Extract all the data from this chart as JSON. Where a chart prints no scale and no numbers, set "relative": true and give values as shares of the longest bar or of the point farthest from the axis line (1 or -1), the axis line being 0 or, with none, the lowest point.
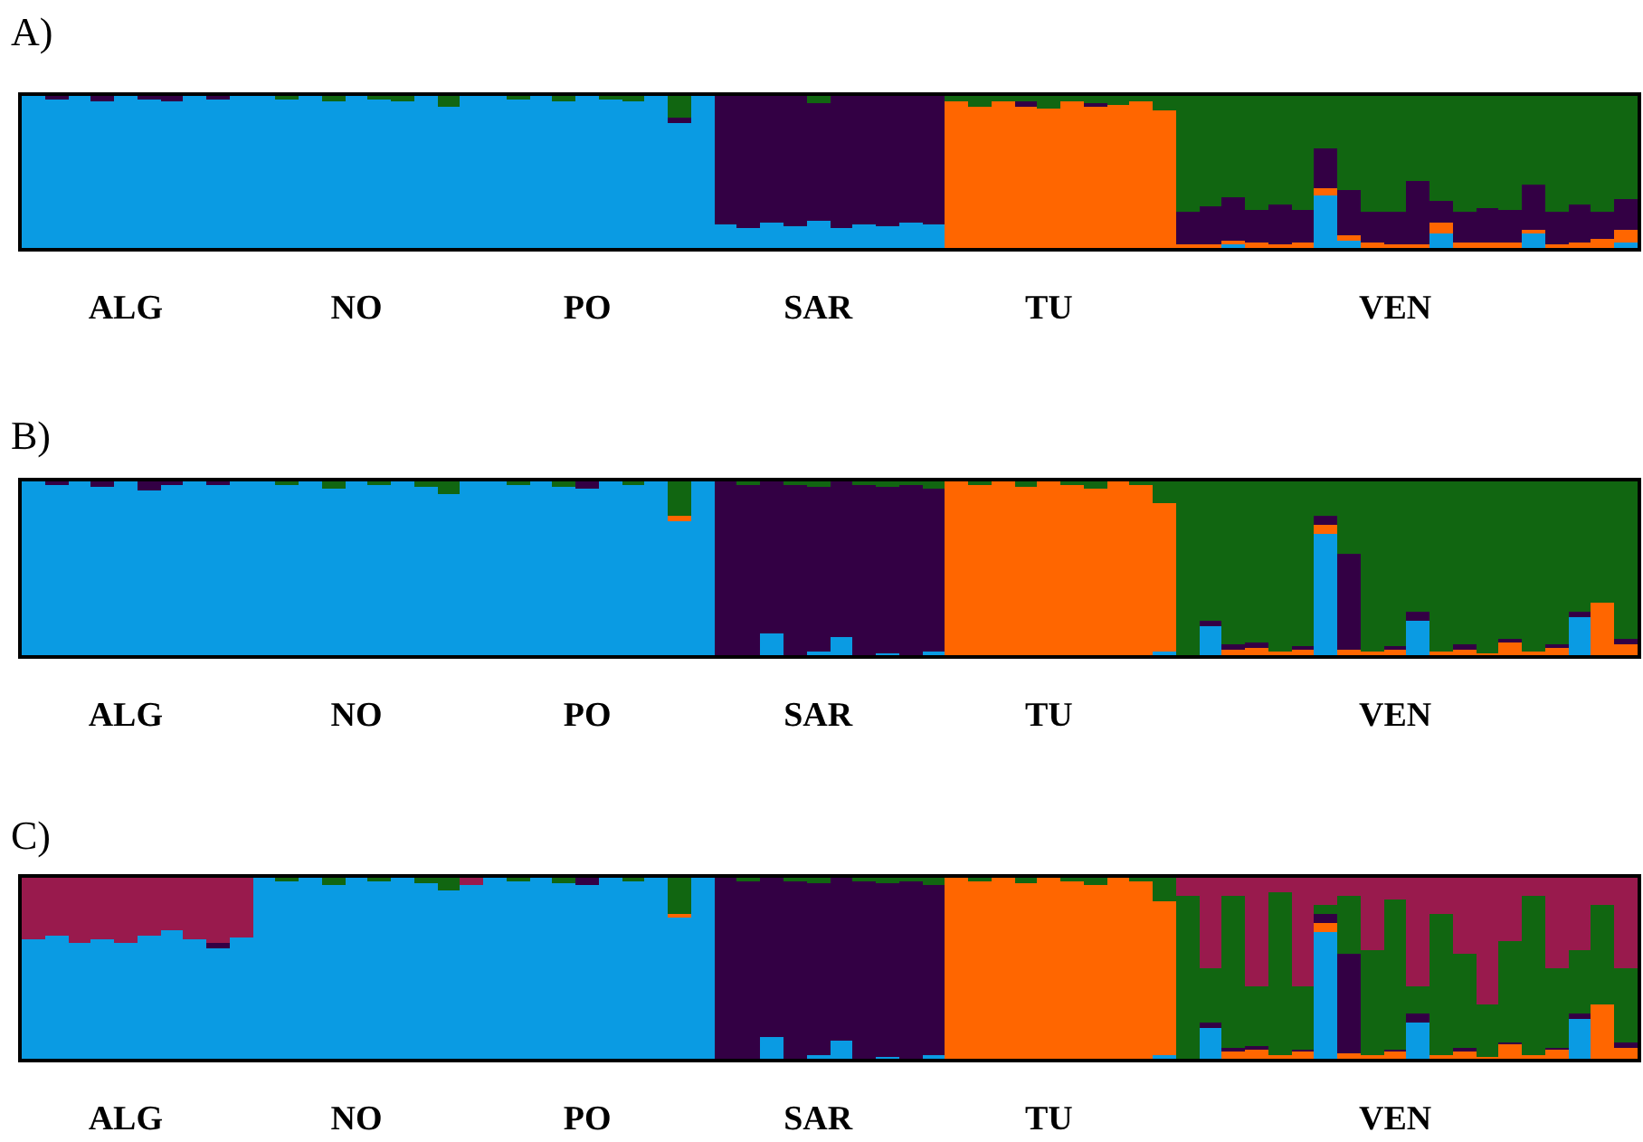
{
  "chart_data": [
    {
      "type": "bar",
      "title": "A)",
      "stacked": true,
      "relative": true,
      "categories": [
        null,
        null,
        null,
        null,
        "ALG",
        null,
        null,
        null,
        null,
        null,
        null,
        null,
        null,
        null,
        "NO",
        null,
        null,
        null,
        null,
        null,
        null,
        null,
        null,
        null,
        "PO",
        null,
        null,
        null,
        null,
        null,
        null,
        null,
        null,
        null,
        "SAR",
        null,
        null,
        null,
        null,
        null,
        null,
        null,
        null,
        null,
        "TU",
        null,
        null,
        null,
        null,
        null,
        null,
        null,
        null,
        null,
        null,
        null,
        null,
        null,
        null,
        "VEN",
        null,
        null,
        null,
        null,
        null,
        null,
        null,
        null,
        null,
        null
      ],
      "series": [
        {
          "color": "#0a9be3",
          "values": [
            1,
            0.98,
            1,
            0.97,
            1,
            0.98,
            0.96,
            1,
            0.98,
            1,
            1,
            0.98,
            1,
            0.97,
            1,
            0.98,
            0.96,
            1,
            0.93,
            1,
            1,
            0.98,
            1,
            0.97,
            1,
            0.98,
            0.96,
            1,
            0.82,
            1,
            0.15,
            0.13,
            0.17,
            0.14,
            0.18,
            0.13,
            0.16,
            0.14,
            0.17,
            0.15,
            0,
            0,
            0,
            0,
            0,
            0,
            0,
            0,
            0,
            0,
            0,
            0,
            0.03,
            0,
            0,
            0,
            0.35,
            0.05,
            0,
            0,
            0,
            0.1,
            0,
            0,
            0,
            0.1,
            0,
            0,
            0,
            0.04
          ]
        },
        {
          "color": "#ff6600",
          "values": [
            0,
            0,
            0,
            0,
            0,
            0,
            0,
            0,
            0,
            0,
            0,
            0,
            0,
            0,
            0,
            0,
            0,
            0,
            0,
            0,
            0,
            0,
            0,
            0,
            0,
            0,
            0,
            0,
            0,
            0,
            0,
            0,
            0,
            0,
            0,
            0,
            0,
            0,
            0,
            0,
            0.96,
            0.93,
            0.97,
            0.94,
            0.92,
            0.96,
            0.93,
            0.94,
            0.97,
            0.9,
            0.02,
            0.02,
            0.02,
            0.03,
            0.02,
            0.03,
            0.04,
            0.03,
            0.04,
            0.02,
            0.02,
            0.07,
            0.04,
            0.03,
            0.03,
            0.02,
            0.02,
            0.03,
            0.06,
            0.08
          ]
        },
        {
          "color": "#330044",
          "values": [
            0,
            0.02,
            0,
            0.03,
            0,
            0.02,
            0.04,
            0,
            0.02,
            0,
            0,
            0,
            0,
            0,
            0,
            0,
            0,
            0,
            0,
            0,
            0,
            0,
            0,
            0,
            0,
            0,
            0,
            0,
            0.04,
            0,
            0.85,
            0.87,
            0.83,
            0.86,
            0.77,
            0.87,
            0.84,
            0.86,
            0.83,
            0.85,
            0,
            0,
            0,
            0.02,
            0,
            0,
            0.02,
            0,
            0,
            0,
            0.22,
            0.25,
            0.28,
            0.22,
            0.27,
            0.22,
            0.26,
            0.3,
            0.2,
            0.22,
            0.42,
            0.14,
            0.2,
            0.23,
            0.22,
            0.3,
            0.22,
            0.25,
            0.18,
            0.2
          ]
        },
        {
          "color": "#116611",
          "values": [
            0,
            0,
            0,
            0,
            0,
            0,
            0,
            0,
            0,
            0,
            0,
            0.02,
            0,
            0.03,
            0,
            0.02,
            0.04,
            0,
            0.07,
            0,
            0,
            0.02,
            0,
            0.03,
            0,
            0.02,
            0.04,
            0,
            0.14,
            0,
            0,
            0,
            0,
            0,
            0.05,
            0,
            0,
            0,
            0,
            0,
            0.04,
            0.07,
            0.03,
            0.04,
            0.08,
            0.04,
            0.05,
            0.06,
            0.03,
            0.1,
            0.76,
            0.73,
            0.67,
            0.75,
            0.71,
            0.75,
            0.35,
            0.62,
            0.76,
            0.76,
            0.56,
            0.69,
            0.76,
            0.74,
            0.75,
            0.58,
            0.76,
            0.72,
            0.76,
            0.68
          ]
        }
      ]
    },
    {
      "type": "bar",
      "title": "B)",
      "stacked": true,
      "relative": true,
      "categories": [
        null,
        null,
        null,
        null,
        "ALG",
        null,
        null,
        null,
        null,
        null,
        null,
        null,
        null,
        null,
        "NO",
        null,
        null,
        null,
        null,
        null,
        null,
        null,
        null,
        null,
        "PO",
        null,
        null,
        null,
        null,
        null,
        null,
        null,
        null,
        null,
        "SAR",
        null,
        null,
        null,
        null,
        null,
        null,
        null,
        null,
        null,
        "TU",
        null,
        null,
        null,
        null,
        null,
        null,
        null,
        null,
        null,
        null,
        null,
        null,
        null,
        null,
        "VEN",
        null,
        null,
        null,
        null,
        null,
        null,
        null,
        null,
        null,
        null
      ],
      "series": [
        {
          "color": "#0a9be3",
          "values": [
            1,
            0.98,
            1,
            0.97,
            1,
            0.95,
            0.98,
            1,
            0.98,
            1,
            1,
            0.98,
            1,
            0.96,
            1,
            0.98,
            1,
            0.97,
            0.93,
            1,
            1,
            0.98,
            1,
            0.97,
            0.96,
            1,
            0.98,
            1,
            0.78,
            1,
            0,
            0,
            0.12,
            0,
            0.02,
            0.1,
            0,
            0.01,
            0,
            0.02,
            0,
            0,
            0,
            0,
            0,
            0,
            0,
            0,
            0,
            0.02,
            0,
            0.17,
            0,
            0,
            0,
            0,
            0.7,
            0,
            0,
            0,
            0.2,
            0,
            0,
            0,
            0,
            0,
            0,
            0.22,
            0,
            0
          ]
        },
        {
          "color": "#ff6600",
          "values": [
            0,
            0,
            0,
            0,
            0,
            0,
            0,
            0,
            0,
            0,
            0,
            0,
            0,
            0,
            0,
            0,
            0,
            0,
            0,
            0,
            0,
            0,
            0,
            0,
            0,
            0,
            0,
            0,
            0.02,
            0,
            0,
            0,
            0,
            0,
            0,
            0,
            0,
            0,
            0,
            0,
            1,
            0.98,
            1,
            0.97,
            1,
            0.98,
            0.96,
            1,
            0.98,
            0.85,
            0,
            0,
            0.04,
            0.05,
            0.02,
            0.04,
            0.05,
            0.03,
            0.02,
            0.04,
            0,
            0.02,
            0.04,
            0.01,
            0.08,
            0.02,
            0.05,
            0,
            0.3,
            0.06
          ]
        },
        {
          "color": "#330044",
          "values": [
            0,
            0.02,
            0,
            0.03,
            0,
            0.05,
            0.02,
            0,
            0.02,
            0,
            0,
            0,
            0,
            0,
            0,
            0,
            0,
            0,
            0,
            0,
            0,
            0,
            0,
            0,
            0.04,
            0,
            0,
            0,
            0,
            0,
            1,
            0.98,
            0.88,
            0.98,
            0.95,
            0.9,
            0.98,
            0.96,
            0.98,
            0.94,
            0,
            0,
            0,
            0,
            0,
            0,
            0,
            0,
            0,
            0,
            0,
            0.03,
            0.02,
            0.02,
            0,
            0.01,
            0.05,
            0.55,
            0,
            0.01,
            0.05,
            0,
            0.02,
            0,
            0.01,
            0,
            0.01,
            0.03,
            0,
            0.03
          ]
        },
        {
          "color": "#116611",
          "values": [
            0,
            0,
            0,
            0,
            0,
            0,
            0,
            0,
            0,
            0,
            0,
            0.02,
            0,
            0.04,
            0,
            0.02,
            0,
            0.03,
            0.07,
            0,
            0,
            0.02,
            0,
            0.03,
            0,
            0,
            0.02,
            0,
            0.2,
            0,
            0,
            0.02,
            0,
            0.02,
            0.03,
            0,
            0.02,
            0.03,
            0.02,
            0.04,
            0,
            0.02,
            0,
            0.03,
            0,
            0.02,
            0.04,
            0,
            0.02,
            0.13,
            1,
            0.8,
            0.94,
            0.93,
            0.98,
            0.95,
            0.2,
            0.42,
            0.98,
            0.95,
            0.75,
            0.98,
            0.94,
            0.99,
            0.91,
            0.98,
            0.94,
            0.75,
            0.7,
            0.91
          ]
        }
      ]
    },
    {
      "type": "bar",
      "title": "C)",
      "stacked": true,
      "relative": true,
      "categories": [
        null,
        null,
        null,
        null,
        "ALG",
        null,
        null,
        null,
        null,
        null,
        null,
        null,
        null,
        null,
        "NO",
        null,
        null,
        null,
        null,
        null,
        null,
        null,
        null,
        null,
        "PO",
        null,
        null,
        null,
        null,
        null,
        null,
        null,
        null,
        null,
        "SAR",
        null,
        null,
        null,
        null,
        null,
        null,
        null,
        null,
        null,
        "TU",
        null,
        null,
        null,
        null,
        null,
        null,
        null,
        null,
        null,
        null,
        null,
        null,
        null,
        null,
        "VEN",
        null,
        null,
        null,
        null,
        null,
        null,
        null,
        null,
        null,
        null
      ],
      "series": [
        {
          "color": "#0a9be3",
          "values": [
            0.66,
            0.68,
            0.64,
            0.66,
            0.64,
            0.68,
            0.71,
            0.66,
            0.61,
            0.67,
            1,
            0.98,
            1,
            0.96,
            1,
            0.98,
            1,
            0.97,
            0.93,
            0.96,
            1,
            0.98,
            1,
            0.97,
            0.96,
            1,
            0.98,
            1,
            0.78,
            1,
            0,
            0,
            0.12,
            0,
            0.02,
            0.1,
            0,
            0.01,
            0,
            0.02,
            0,
            0,
            0,
            0,
            0,
            0,
            0,
            0,
            0,
            0.02,
            0,
            0.17,
            0,
            0,
            0,
            0,
            0.7,
            0,
            0,
            0,
            0.2,
            0,
            0,
            0,
            0,
            0,
            0,
            0.22,
            0,
            0
          ]
        },
        {
          "color": "#ff6600",
          "values": [
            0,
            0,
            0,
            0,
            0,
            0,
            0,
            0,
            0,
            0,
            0,
            0,
            0,
            0,
            0,
            0,
            0,
            0,
            0,
            0,
            0,
            0,
            0,
            0,
            0,
            0,
            0,
            0,
            0.02,
            0,
            0,
            0,
            0,
            0,
            0,
            0,
            0,
            0,
            0,
            0,
            1,
            0.98,
            1,
            0.97,
            1,
            0.98,
            0.96,
            1,
            0.98,
            0.85,
            0,
            0,
            0.04,
            0.05,
            0.02,
            0.04,
            0.05,
            0.03,
            0.02,
            0.04,
            0,
            0.02,
            0.04,
            0.01,
            0.08,
            0.02,
            0.05,
            0,
            0.3,
            0.06
          ]
        },
        {
          "color": "#330044",
          "values": [
            0,
            0,
            0,
            0,
            0,
            0,
            0,
            0,
            0.03,
            0,
            0,
            0,
            0,
            0,
            0,
            0,
            0,
            0,
            0,
            0,
            0,
            0,
            0,
            0,
            0.04,
            0,
            0,
            0,
            0,
            0,
            1,
            0.98,
            0.88,
            0.98,
            0.95,
            0.9,
            0.98,
            0.96,
            0.98,
            0.94,
            0,
            0,
            0,
            0,
            0,
            0,
            0,
            0,
            0,
            0,
            0,
            0.03,
            0.02,
            0.02,
            0,
            0.01,
            0.05,
            0.55,
            0,
            0.01,
            0.05,
            0,
            0.02,
            0,
            0.01,
            0,
            0.01,
            0.03,
            0,
            0.03
          ]
        },
        {
          "color": "#116611",
          "values": [
            0,
            0,
            0,
            0,
            0,
            0,
            0,
            0,
            0,
            0,
            0,
            0.02,
            0,
            0.04,
            0,
            0.02,
            0,
            0.03,
            0.07,
            0,
            0,
            0.02,
            0,
            0.03,
            0,
            0,
            0.02,
            0,
            0.2,
            0,
            0,
            0.02,
            0,
            0.02,
            0.03,
            0,
            0.02,
            0.03,
            0.02,
            0.04,
            0,
            0.02,
            0,
            0.03,
            0,
            0.02,
            0.04,
            0,
            0.02,
            0.13,
            0.9,
            0.3,
            0.84,
            0.33,
            0.9,
            0.35,
            0.05,
            0.32,
            0.58,
            0.83,
            0.15,
            0.78,
            0.52,
            0.29,
            0.56,
            0.88,
            0.44,
            0.35,
            0.55,
            0.41
          ]
        },
        {
          "color": "#991a4d",
          "values": [
            0.34,
            0.32,
            0.36,
            0.34,
            0.36,
            0.32,
            0.29,
            0.34,
            0.36,
            0.33,
            0,
            0,
            0,
            0,
            0,
            0,
            0,
            0,
            0,
            0.04,
            0,
            0,
            0,
            0,
            0,
            0,
            0,
            0,
            0,
            0,
            0,
            0,
            0,
            0,
            0,
            0,
            0,
            0,
            0,
            0,
            0,
            0,
            0,
            0,
            0,
            0,
            0,
            0,
            0,
            0,
            0.1,
            0.5,
            0.1,
            0.6,
            0.08,
            0.6,
            0.15,
            0.1,
            0.4,
            0.12,
            0.6,
            0.2,
            0.42,
            0.7,
            0.35,
            0.1,
            0.5,
            0.4,
            0.15,
            0.5
          ]
        }
      ]
    }
  ]
}
